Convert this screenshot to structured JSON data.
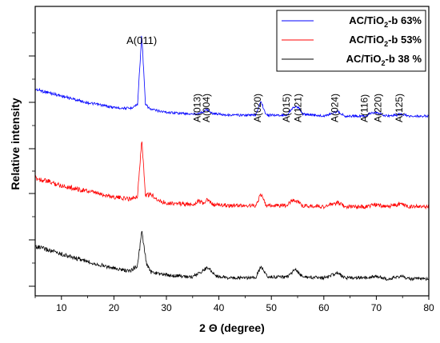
{
  "chart_data": {
    "type": "line",
    "xlabel": "2 Θ (degree)",
    "ylabel": "Relative intensity",
    "xlim": [
      5,
      80
    ],
    "x_ticks": [
      "10",
      "20",
      "30",
      "40",
      "50",
      "60",
      "70",
      "80"
    ],
    "grid": false,
    "legend_position": "top-right",
    "series": [
      {
        "name": "AC/TiO2-b 63%",
        "label_main": "AC/TiO",
        "label_sub": "2",
        "label_tail": "-b 63%",
        "color": "#0000ff",
        "points": [
          [
            5,
            0.42
          ],
          [
            10,
            0.35
          ],
          [
            15,
            0.28
          ],
          [
            20,
            0.23
          ],
          [
            23,
            0.22
          ],
          [
            24.5,
            0.26
          ],
          [
            25.3,
            1.0
          ],
          [
            26,
            0.26
          ],
          [
            27,
            0.21
          ],
          [
            30,
            0.18
          ],
          [
            35,
            0.16
          ],
          [
            36.9,
            0.18
          ],
          [
            37.8,
            0.21
          ],
          [
            38.6,
            0.17
          ],
          [
            42,
            0.15
          ],
          [
            47,
            0.15
          ],
          [
            48,
            0.3
          ],
          [
            49,
            0.15
          ],
          [
            53,
            0.15
          ],
          [
            53.9,
            0.22
          ],
          [
            55.1,
            0.24
          ],
          [
            56,
            0.16
          ],
          [
            60,
            0.14
          ],
          [
            62.7,
            0.19
          ],
          [
            64,
            0.14
          ],
          [
            68,
            0.14
          ],
          [
            68.8,
            0.17
          ],
          [
            70.3,
            0.17
          ],
          [
            72,
            0.14
          ],
          [
            75,
            0.16
          ],
          [
            76,
            0.14
          ],
          [
            80,
            0.14
          ]
        ]
      },
      {
        "name": "AC/TiO2-b 53%",
        "label_main": "AC/TiO",
        "label_sub": "2",
        "label_tail": "-b 53%",
        "color": "#ff0000",
        "points": [
          [
            5,
            0.38
          ],
          [
            10,
            0.3
          ],
          [
            15,
            0.24
          ],
          [
            20,
            0.18
          ],
          [
            23,
            0.16
          ],
          [
            24.5,
            0.19
          ],
          [
            25.3,
            0.78
          ],
          [
            26,
            0.2
          ],
          [
            27.4,
            0.2
          ],
          [
            28.5,
            0.14
          ],
          [
            30,
            0.12
          ],
          [
            35,
            0.1
          ],
          [
            36.1,
            0.14
          ],
          [
            37,
            0.11
          ],
          [
            37.8,
            0.15
          ],
          [
            39,
            0.1
          ],
          [
            42,
            0.09
          ],
          [
            47,
            0.09
          ],
          [
            48,
            0.21
          ],
          [
            49,
            0.09
          ],
          [
            53,
            0.09
          ],
          [
            53.9,
            0.15
          ],
          [
            55.1,
            0.13
          ],
          [
            56,
            0.09
          ],
          [
            60,
            0.08
          ],
          [
            62.7,
            0.12
          ],
          [
            64,
            0.08
          ],
          [
            68,
            0.08
          ],
          [
            69.8,
            0.1
          ],
          [
            72,
            0.08
          ],
          [
            75,
            0.11
          ],
          [
            76,
            0.08
          ],
          [
            80,
            0.08
          ]
        ]
      },
      {
        "name": "AC/TiO2-b 38 %",
        "label_main": "AC/TiO",
        "label_sub": "2",
        "label_tail": "-b 38 %",
        "color": "#000000",
        "points": [
          [
            5,
            0.4
          ],
          [
            10,
            0.32
          ],
          [
            15,
            0.24
          ],
          [
            20,
            0.17
          ],
          [
            23,
            0.14
          ],
          [
            24.5,
            0.2
          ],
          [
            25.3,
            0.55
          ],
          [
            26.2,
            0.22
          ],
          [
            27,
            0.13
          ],
          [
            30,
            0.1
          ],
          [
            35,
            0.08
          ],
          [
            37.9,
            0.18
          ],
          [
            39.5,
            0.09
          ],
          [
            42,
            0.07
          ],
          [
            47,
            0.07
          ],
          [
            48,
            0.19
          ],
          [
            49.3,
            0.08
          ],
          [
            53,
            0.08
          ],
          [
            54.5,
            0.16
          ],
          [
            56,
            0.08
          ],
          [
            60,
            0.07
          ],
          [
            62.7,
            0.12
          ],
          [
            64,
            0.07
          ],
          [
            68,
            0.07
          ],
          [
            69.8,
            0.09
          ],
          [
            72,
            0.06
          ],
          [
            75,
            0.09
          ],
          [
            76,
            0.06
          ],
          [
            80,
            0.06
          ]
        ]
      }
    ],
    "peak_annotations": [
      {
        "text": "A(011)",
        "x": 25.3
      },
      {
        "text": "A(013)",
        "x": 36.9
      },
      {
        "text": "A(004)",
        "x": 37.8
      },
      {
        "text": "A(020)",
        "x": 48.0
      },
      {
        "text": "A(015)",
        "x": 53.9
      },
      {
        "text": "A(121)",
        "x": 55.1
      },
      {
        "text": "A(024)",
        "x": 62.7
      },
      {
        "text": "A(116)",
        "x": 68.8
      },
      {
        "text": "A(220)",
        "x": 70.3
      },
      {
        "text": "A(125)",
        "x": 75.0
      }
    ]
  }
}
